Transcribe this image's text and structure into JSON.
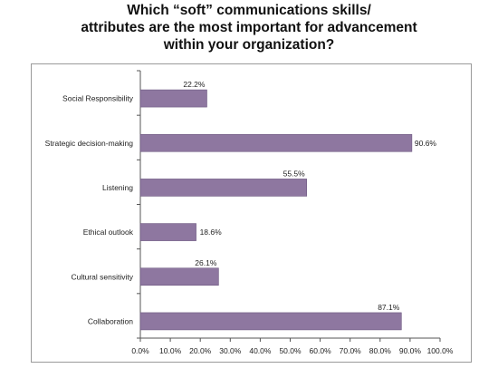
{
  "chart_data": {
    "type": "bar",
    "orientation": "horizontal",
    "title_lines": [
      "Which “soft” communications skills/",
      "attributes are the most important for advancement",
      "within your organization?"
    ],
    "categories": [
      "Social Responsibility",
      "Strategic decision-making",
      "Listening",
      "Ethical outlook",
      "Cultural sensitivity",
      "Collaboration"
    ],
    "values": [
      22.2,
      90.6,
      55.5,
      18.6,
      26.1,
      87.1
    ],
    "value_labels": [
      "22.2%",
      "90.6%",
      "55.5%",
      "18.6%",
      "26.1%",
      "87.1%"
    ],
    "xlim": [
      0,
      100
    ],
    "ticks": [
      "0.0%",
      "10.0%",
      "20.0%",
      "30.0%",
      "40.0%",
      "50.0%",
      "60.0%",
      "70.0%",
      "80.0%",
      "90.0%",
      "100.0%"
    ],
    "grid": false,
    "legend": "none",
    "bar_color": "#8e77a0",
    "bar_edge_color": "#6d5880"
  }
}
